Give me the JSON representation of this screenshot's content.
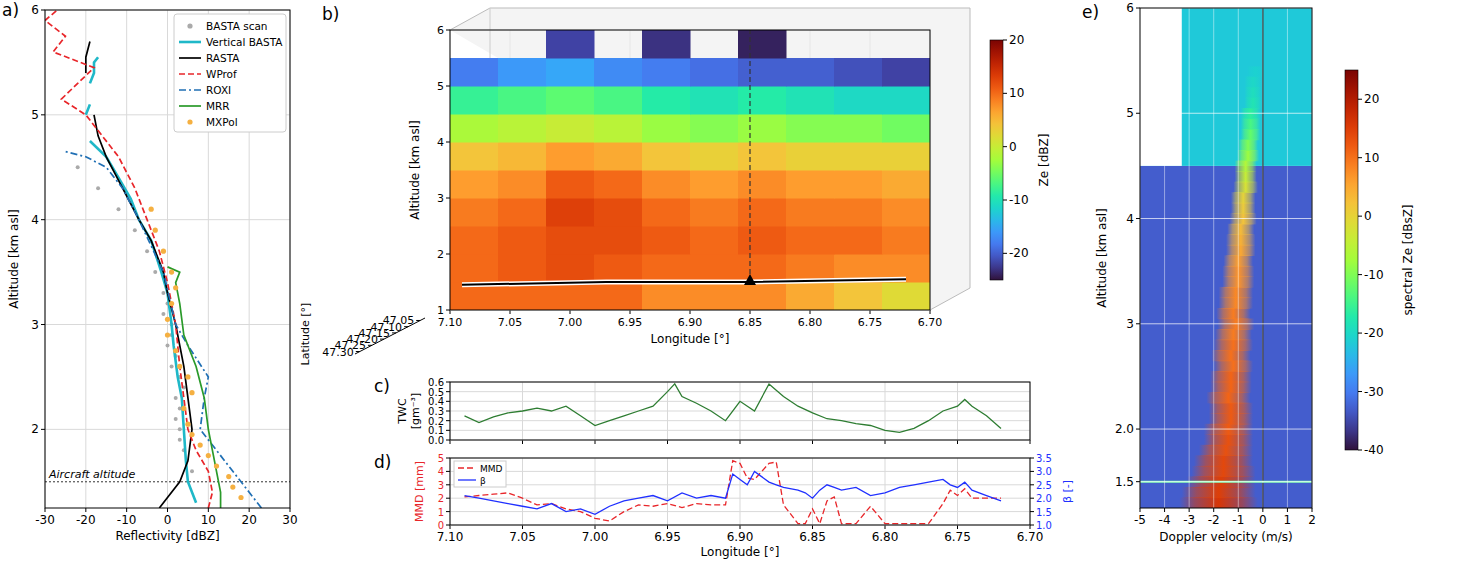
{
  "chart_data": [
    {
      "panel": "a)",
      "type": "line",
      "x_label": "Reflectivity [dBZ]",
      "y_label": "Altitude [km asl]",
      "xlim": [
        -30,
        30
      ],
      "xticks": [
        -30,
        -20,
        -10,
        0,
        10,
        20,
        30
      ],
      "ylim": [
        1.25,
        6
      ],
      "yticks": [
        2,
        3,
        4,
        5,
        6
      ],
      "grid": true,
      "legend": "upper right",
      "aircraft_altitude": 1.5,
      "aircraft_label": "Aircraft altitude",
      "series": [
        {
          "name": "BASTA scan",
          "type": "scatter",
          "marker": "dot",
          "color": "#aaaaaa",
          "y": [
            1.6,
            1.8,
            1.9,
            2.0,
            2.1,
            2.2,
            2.3,
            2.4,
            2.5,
            2.6,
            2.7,
            2.8,
            2.9,
            3.0,
            3.1,
            3.2,
            3.3,
            3.5,
            3.7,
            3.9,
            4.1,
            4.3,
            4.5
          ],
          "x": [
            6,
            4,
            3,
            3,
            2,
            3,
            2,
            4,
            3,
            1,
            2,
            0,
            1,
            1,
            -1,
            0,
            -1,
            -3,
            -5,
            -8,
            -12,
            -17,
            -22
          ]
        },
        {
          "name": "Vertical BASTA",
          "type": "line",
          "line_style": "solid",
          "color": "#1fb8c8",
          "y": [
            1.3,
            1.5,
            1.7,
            2.0,
            2.3,
            2.5,
            2.8,
            3.0,
            3.3,
            3.5,
            3.8,
            4.0,
            4.2,
            4.4,
            4.6,
            4.75,
            null,
            5.0,
            5.1,
            null,
            5.3,
            5.4,
            5.5,
            5.55
          ],
          "x": [
            7,
            5,
            4.5,
            4,
            3.5,
            2.5,
            1.5,
            1,
            0,
            -1.5,
            -4,
            -7,
            -9,
            -12,
            -15,
            -19,
            null,
            -20,
            -19,
            null,
            -19,
            -18,
            -18,
            -17
          ]
        },
        {
          "name": "RASTA",
          "type": "line",
          "line_style": "solid",
          "color": "#000000",
          "y": [
            1.25,
            1.35,
            1.5,
            1.7,
            2.0,
            2.3,
            2.6,
            3.0,
            3.3,
            3.5,
            3.8,
            4.0,
            4.3,
            4.6,
            4.8,
            5.0,
            null,
            5.4,
            5.55,
            5.7
          ],
          "x": [
            -2,
            0,
            3,
            5,
            6,
            5,
            4,
            2,
            0,
            -1,
            -4,
            -7,
            -11,
            -15,
            -17,
            -18,
            null,
            -20,
            -20,
            -19
          ]
        },
        {
          "name": "WProf",
          "type": "line",
          "line_style": "dashed",
          "color": "#e8262a",
          "y": [
            1.25,
            1.4,
            1.6,
            1.8,
            2.0,
            2.3,
            2.6,
            3.0,
            3.4,
            3.7,
            4.0,
            4.3,
            4.6,
            4.8,
            5.0,
            5.15,
            5.3,
            5.45,
            5.6,
            5.75,
            5.9,
            6.0
          ],
          "x": [
            10,
            11,
            10,
            7,
            5,
            4,
            3,
            2,
            0,
            -2,
            -5,
            -8,
            -12,
            -16,
            -20,
            -26,
            -22,
            -18,
            -28,
            -25,
            -30,
            -27
          ]
        },
        {
          "name": "ROXI",
          "type": "line",
          "line_style": "dashdot",
          "color": "#1f6fb4",
          "y": [
            1.25,
            1.4,
            1.6,
            1.8,
            2.0,
            2.3,
            2.5,
            2.8,
            3.0,
            3.5,
            4.0,
            4.3,
            4.5,
            4.6,
            4.65
          ],
          "x": [
            23,
            20,
            16,
            12,
            8,
            9,
            10,
            5,
            2,
            -1,
            -7,
            -11,
            -15,
            -20,
            -25
          ]
        },
        {
          "name": "MRR",
          "type": "line",
          "line_style": "solid",
          "color": "#2a9a2a",
          "y": [
            1.25,
            1.4,
            1.6,
            1.8,
            2.0,
            2.3,
            2.6,
            2.9,
            3.2,
            3.4,
            3.5,
            3.55
          ],
          "x": [
            13,
            13,
            12,
            11,
            10,
            9,
            7,
            4,
            3,
            2,
            3,
            0
          ]
        },
        {
          "name": "MXPol",
          "type": "scatter",
          "marker": "dot",
          "color": "#f5b041",
          "y": [
            1.35,
            1.45,
            1.55,
            1.65,
            1.75,
            1.85,
            1.95,
            2.05,
            2.2,
            2.35,
            2.5,
            2.6,
            2.75,
            2.9,
            3.05,
            3.2,
            3.35,
            3.5,
            3.7,
            3.9,
            4.1
          ],
          "x": [
            18,
            16,
            15,
            12,
            10,
            8,
            6,
            5,
            4,
            6,
            5,
            3,
            2,
            0,
            0,
            1,
            2,
            1,
            -1,
            -3,
            -4
          ]
        }
      ]
    },
    {
      "panel": "b)",
      "type": "heatmap",
      "x_label": "Longitude [°]",
      "y_label": "Altitude [km asl]",
      "latitude_label": "Latitude [°]",
      "xlim": [
        7.1,
        6.7
      ],
      "xticks": [
        {
          "value": 7.1,
          "label": "7.10"
        },
        7.05,
        {
          "value": 7.0,
          "label": "7.00"
        },
        6.95,
        {
          "value": 6.9,
          "label": "6.90"
        },
        6.85,
        {
          "value": 6.8,
          "label": "6.80"
        },
        6.75,
        {
          "value": 6.7,
          "label": "6.70"
        }
      ],
      "ylim": [
        1,
        6
      ],
      "yticks": [
        1,
        2,
        3,
        4,
        5,
        6
      ],
      "latitude_lim": [
        47.03,
        47.32
      ],
      "latitude_ticks": [
        47.05,
        {
          "value": 47.1,
          "label": "47.10"
        },
        47.15,
        {
          "value": 47.2,
          "label": "47.20"
        },
        47.25,
        {
          "value": 47.3,
          "label": "47.30"
        }
      ],
      "x": [
        7.08,
        7.04,
        7.0,
        6.96,
        6.92,
        6.88,
        6.84,
        6.8,
        6.76,
        6.72
      ],
      "y": [
        1.25,
        1.75,
        2.25,
        2.75,
        3.25,
        3.75,
        4.25,
        4.75,
        5.25,
        5.75
      ],
      "cells": [
        [
          10,
          10,
          10,
          10,
          8,
          8,
          8,
          6,
          4,
          2
        ],
        [
          10,
          11,
          12,
          11,
          10,
          10,
          10,
          9,
          8,
          8
        ],
        [
          10,
          11,
          12,
          12,
          11,
          10,
          11,
          10,
          10,
          9
        ],
        [
          9,
          10,
          13,
          12,
          10,
          9,
          10,
          9,
          9,
          8
        ],
        [
          7,
          8,
          11,
          10,
          8,
          7,
          8,
          7,
          7,
          6
        ],
        [
          4,
          5,
          7,
          6,
          4,
          3,
          4,
          3,
          3,
          3
        ],
        [
          -2,
          -1,
          0,
          -1,
          -3,
          -4,
          -3,
          -4,
          -4,
          -5
        ],
        [
          -8,
          -7,
          -6,
          -7,
          -9,
          -10,
          -9,
          -10,
          -11,
          -11
        ],
        [
          -18,
          -16,
          -15,
          -17,
          -18,
          -19,
          -20,
          -20,
          -21,
          -22
        ],
        [
          null,
          null,
          -22,
          null,
          -23,
          null,
          -24,
          null,
          null,
          null
        ]
      ],
      "colorbar": {
        "label": "Ze [dBZ]",
        "lim": [
          -25,
          20
        ],
        "ticks": [
          -20,
          -10,
          0,
          10,
          20
        ]
      },
      "track": {
        "x": [
          7.09,
          6.97,
          6.9,
          6.85,
          6.72
        ],
        "y": [
          1.45,
          1.5,
          1.5,
          1.5,
          1.55
        ]
      },
      "marker_position": {
        "x": 6.85,
        "y": 1.5
      }
    },
    {
      "panel": "c)",
      "type": "line",
      "y_label": "TWC [gm⁻³]",
      "xlim": [
        7.1,
        6.7
      ],
      "xticks": [
        {
          "value": 7.1,
          "label": "7.10"
        },
        7.05,
        {
          "value": 7.0,
          "label": "7.00"
        },
        6.95,
        {
          "value": 6.9,
          "label": "6.90"
        },
        6.85,
        {
          "value": 6.8,
          "label": "6.80"
        },
        6.75,
        {
          "value": 6.7,
          "label": "6.70"
        }
      ],
      "ylim": [
        0,
        0.6
      ],
      "yticks": [
        {
          "value": 0,
          "label": "0.0"
        },
        0.1,
        0.2,
        0.3,
        0.4,
        0.5,
        0.6
      ],
      "grid": true,
      "tick_labels": "y",
      "color": "#2e7d32",
      "x": [
        7.09,
        7.08,
        7.07,
        7.06,
        7.05,
        7.04,
        7.03,
        7.02,
        7.01,
        7.0,
        6.99,
        6.98,
        6.97,
        6.96,
        6.95,
        6.945,
        6.94,
        6.93,
        6.92,
        6.91,
        6.9,
        6.89,
        6.88,
        6.87,
        6.86,
        6.85,
        6.84,
        6.83,
        6.82,
        6.81,
        6.8,
        6.79,
        6.78,
        6.77,
        6.76,
        6.75,
        6.745,
        6.74,
        6.73,
        6.72
      ],
      "values": [
        0.25,
        0.18,
        0.24,
        0.28,
        0.3,
        0.33,
        0.3,
        0.35,
        0.25,
        0.15,
        0.2,
        0.25,
        0.3,
        0.35,
        0.5,
        0.58,
        0.45,
        0.38,
        0.3,
        0.2,
        0.4,
        0.3,
        0.58,
        0.45,
        0.35,
        0.28,
        0.22,
        0.2,
        0.17,
        0.15,
        0.1,
        0.08,
        0.12,
        0.2,
        0.3,
        0.35,
        0.42,
        0.35,
        0.25,
        0.12
      ]
    },
    {
      "panel": "d)",
      "type": "line",
      "x_label": "Longitude [°]",
      "y_label": "MMD [mm]",
      "y2_label": "β [-]",
      "xlim": [
        7.1,
        6.7
      ],
      "xticks": [
        {
          "value": 7.1,
          "label": "7.10"
        },
        7.05,
        {
          "value": 7.0,
          "label": "7.00"
        },
        6.95,
        {
          "value": 6.9,
          "label": "6.90"
        },
        6.85,
        {
          "value": 6.8,
          "label": "6.80"
        },
        6.75,
        {
          "value": 6.7,
          "label": "6.70"
        }
      ],
      "ylim": [
        0,
        5
      ],
      "yticks": [
        0,
        1,
        2,
        3,
        4,
        5
      ],
      "y2lim": [
        1,
        3.5
      ],
      "y2ticks": [
        {
          "value": 1,
          "label": "1.0"
        },
        1.5,
        {
          "value": 2,
          "label": "2.0"
        },
        2.5,
        {
          "value": 3,
          "label": "3.0"
        },
        3.5
      ],
      "grid": true,
      "legend": "upper left",
      "x": [
        7.09,
        7.08,
        7.07,
        7.06,
        7.05,
        7.04,
        7.03,
        7.02,
        7.01,
        7.0,
        6.99,
        6.98,
        6.97,
        6.96,
        6.95,
        6.94,
        6.93,
        6.92,
        6.91,
        6.905,
        6.9,
        6.895,
        6.89,
        6.88,
        6.875,
        6.87,
        6.86,
        6.855,
        6.85,
        6.845,
        6.84,
        6.835,
        6.83,
        6.82,
        6.81,
        6.8,
        6.79,
        6.78,
        6.77,
        6.76,
        6.755,
        6.75,
        6.745,
        6.74,
        6.73,
        6.72
      ],
      "series": [
        {
          "name": "MMD",
          "color": "#e8262a",
          "line_style": "dashed",
          "values": [
            2.1,
            2.2,
            2.3,
            2.4,
            2.0,
            1.5,
            1.6,
            1.2,
            1.0,
            0.5,
            0.3,
            1.0,
            1.5,
            1.4,
            1.6,
            1.3,
            1.6,
            1.5,
            1.5,
            4.8,
            4.6,
            3.5,
            3.4,
            4.6,
            4.7,
            1.5,
            0.1,
            0.1,
            1.2,
            0.1,
            1.8,
            2.1,
            0.1,
            0.1,
            1.4,
            0.1,
            0.1,
            0.1,
            0.1,
            1.6,
            2.6,
            2.2,
            2.7,
            2.0,
            2.0,
            2.0
          ]
        },
        {
          "name": "β",
          "color": "#2030ff",
          "line_style": "solid",
          "axis": "y2",
          "values": [
            2.1,
            2.0,
            1.9,
            1.8,
            1.7,
            1.6,
            1.8,
            1.5,
            1.6,
            1.4,
            1.7,
            1.9,
            2.0,
            2.1,
            1.9,
            2.2,
            2.0,
            2.1,
            2.0,
            2.9,
            2.7,
            2.5,
            3.0,
            2.6,
            2.5,
            2.4,
            2.3,
            2.2,
            2.0,
            2.3,
            2.5,
            2.4,
            2.3,
            2.4,
            2.1,
            2.2,
            2.4,
            2.5,
            2.6,
            2.7,
            2.5,
            2.4,
            2.6,
            2.3,
            2.1,
            1.9
          ]
        }
      ]
    },
    {
      "panel": "e)",
      "type": "spectrogram",
      "x_label": "Doppler velocity (m/s)",
      "y_label": "Altitude [km asl]",
      "xlim": [
        -5,
        2
      ],
      "xticks": [
        -5,
        -4,
        -3,
        -2,
        -1,
        0,
        1,
        2
      ],
      "ylim": [
        1.25,
        6
      ],
      "yticks": [
        1.5,
        {
          "value": 2,
          "label": "2.0"
        },
        3,
        4,
        5,
        6
      ],
      "grid": true,
      "reference_line": 0,
      "aircraft_altitude": 1.5,
      "noise": [
        {
          "altitude": [
            1.25,
            4.5
          ],
          "value": -33
        },
        {
          "altitude": [
            4.5,
            6
          ],
          "value": -22
        }
      ],
      "no_data": {
        "velocity": [
          -5,
          -3.3
        ],
        "altitude": [
          4.5,
          6
        ]
      },
      "ridge": {
        "altitude": [
          1.3,
          1.4,
          1.5,
          1.6,
          1.7,
          1.8,
          1.9,
          2.0,
          2.1,
          2.2,
          2.3,
          2.4,
          2.5,
          2.6,
          2.7,
          2.8,
          2.9,
          3.0,
          3.1,
          3.2,
          3.3,
          3.4,
          3.5,
          3.6,
          3.7,
          3.8,
          3.9,
          4.0,
          4.1,
          4.2,
          4.3,
          4.4,
          4.5,
          4.6,
          4.7,
          4.8,
          4.9,
          5.0,
          5.1,
          5.2,
          5.3,
          5.4,
          5.5
        ],
        "velocity": [
          -1.8,
          -1.8,
          -1.7,
          -1.6,
          -1.6,
          -1.5,
          -1.4,
          -1.4,
          -1.3,
          -1.3,
          -1.4,
          -1.3,
          -1.3,
          -1.2,
          -1.3,
          -1.2,
          -1.2,
          -1.1,
          -1.2,
          -1.1,
          -1.1,
          -1.0,
          -1.0,
          -1.0,
          -0.9,
          -0.9,
          -0.9,
          -0.8,
          -0.8,
          -0.8,
          -0.7,
          -0.7,
          -0.7,
          -0.6,
          -0.6,
          -0.5,
          -0.5,
          -0.5,
          -0.4,
          -0.4,
          -0.4,
          -0.3,
          -0.3
        ],
        "half_width": [
          1.6,
          1.5,
          1.4,
          1.3,
          1.2,
          1.1,
          1.0,
          1.0,
          0.9,
          0.9,
          0.9,
          0.85,
          0.85,
          0.8,
          0.8,
          0.8,
          0.75,
          0.75,
          0.7,
          0.7,
          0.7,
          0.65,
          0.65,
          0.6,
          0.6,
          0.6,
          0.55,
          0.55,
          0.5,
          0.5,
          0.5,
          0.45,
          0.45,
          0.45,
          0.4,
          0.4,
          0.4,
          0.4,
          0.35,
          0.35,
          0.35,
          0.35,
          0.35
        ],
        "peak": [
          16,
          15,
          15,
          14,
          14,
          13,
          13,
          12,
          12,
          12,
          11,
          11,
          11,
          10,
          10,
          10,
          9,
          9,
          9,
          8,
          8,
          7,
          7,
          6,
          5,
          4,
          3,
          2,
          1,
          0,
          -2,
          -4,
          -6,
          -8,
          -10,
          -12,
          -14,
          -16,
          -18,
          -19,
          -20,
          -21,
          -22
        ]
      },
      "colorbar": {
        "label": "spectral Ze [dBsZ]",
        "lim": [
          -40,
          25
        ],
        "ticks": [
          -40,
          -30,
          -20,
          -10,
          0,
          10,
          20
        ]
      }
    }
  ]
}
